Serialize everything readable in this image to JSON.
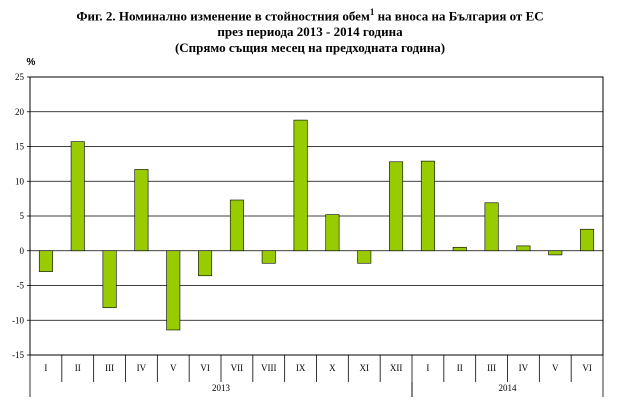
{
  "title": {
    "line1_a": "Фиг. 2. Номинално изменение в стойностния обем",
    "line1_sup": "1",
    "line1_b": " на вноса на България от ЕС",
    "line2": "през периода 2013 - 2014 година",
    "line3": "(Спрямо същия месец на предходната година)"
  },
  "chart_data": {
    "type": "bar",
    "ylabel": "%",
    "ylim": [
      -15,
      25
    ],
    "yticks": [
      25,
      20,
      15,
      10,
      5,
      0,
      -5,
      -10,
      -15
    ],
    "grid": true,
    "categories": [
      "I",
      "II",
      "III",
      "IV",
      "V",
      "VI",
      "VII",
      "VIII",
      "IX",
      "X",
      "XI",
      "XII",
      "I",
      "II",
      "III",
      "IV",
      "V",
      "VI"
    ],
    "values": [
      -3.0,
      15.7,
      -8.2,
      11.7,
      -11.4,
      -3.6,
      7.3,
      -1.8,
      18.8,
      5.2,
      -1.8,
      12.8,
      12.9,
      0.5,
      6.9,
      0.7,
      -0.6,
      3.1
    ],
    "groups": [
      {
        "label": "2013",
        "count": 12
      },
      {
        "label": "2014",
        "count": 6
      }
    ],
    "bar_color": "#99cc00",
    "bar_stroke": "#000000"
  }
}
